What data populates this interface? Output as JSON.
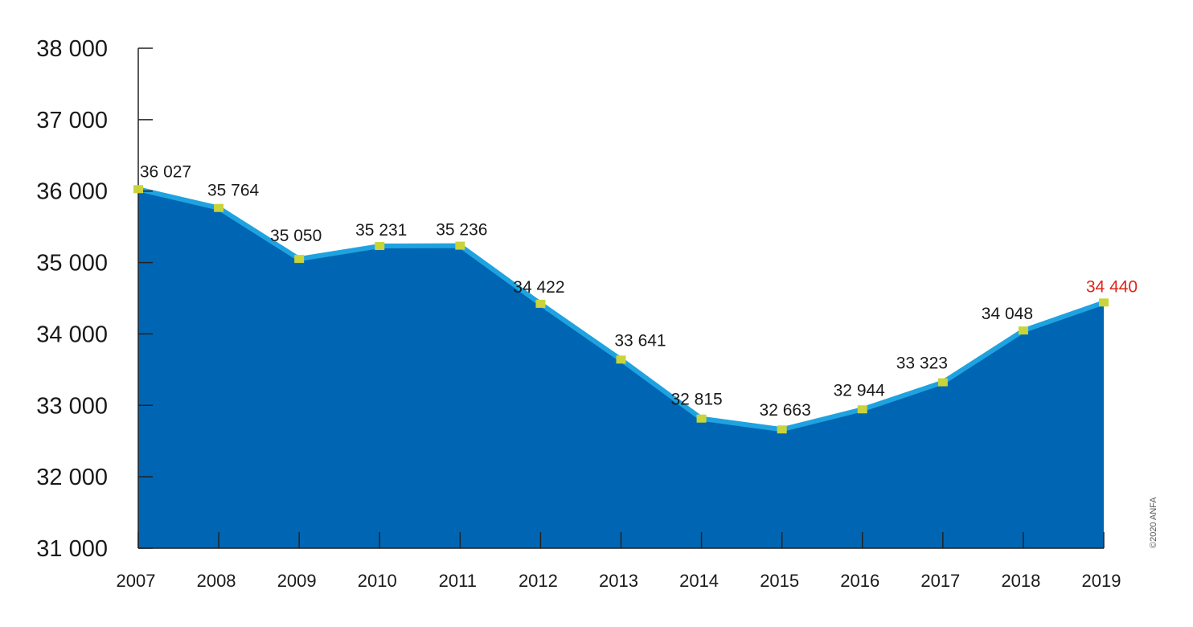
{
  "chart_data": {
    "type": "area",
    "title": "",
    "xlabel": "",
    "ylabel": "",
    "categories": [
      "2007",
      "2008",
      "2009",
      "2010",
      "2011",
      "2012",
      "2013",
      "2014",
      "2015",
      "2016",
      "2017",
      "2018",
      "2019"
    ],
    "values": [
      36027,
      35764,
      35050,
      35231,
      35236,
      34422,
      33641,
      32815,
      32663,
      32944,
      33323,
      34048,
      34440
    ],
    "value_labels": [
      "36 027",
      "35 764",
      "35 050",
      "35 231",
      "35 236",
      "34 422",
      "33 641",
      "32 815",
      "32 663",
      "32 944",
      "33 323",
      "34 048",
      "34 440"
    ],
    "ylim": [
      31000,
      38000
    ],
    "yticks": [
      31000,
      32000,
      33000,
      34000,
      35000,
      36000,
      37000,
      38000
    ],
    "ytick_labels": [
      "31 000",
      "32 000",
      "33 000",
      "34 000",
      "35 000",
      "36 000",
      "37 000",
      "38 000"
    ],
    "grid": false,
    "highlight_last_label": true,
    "colors": {
      "area_fill": "#0066b3",
      "line": "#1fa3e0",
      "marker": "#c8d43a",
      "highlight_label": "#e0251b",
      "axis": "#222222"
    }
  },
  "credit": "©2020 ANFA"
}
